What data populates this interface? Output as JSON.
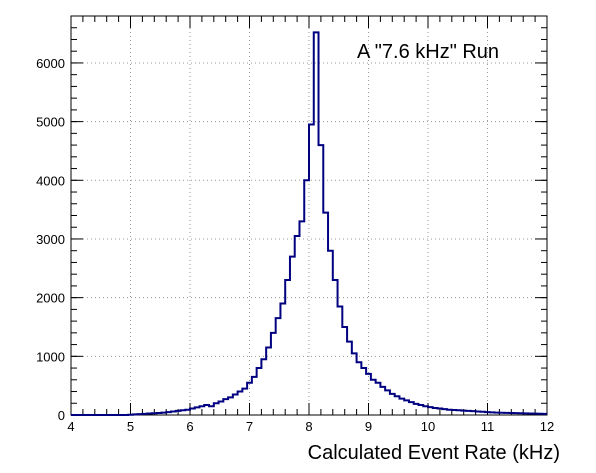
{
  "chart_data": {
    "type": "histogram",
    "title": "",
    "annotation": "A \"7.6 kHz\" Run",
    "xlabel": "Calculated Event Rate (kHz)",
    "ylabel": "",
    "xlim": [
      4,
      12
    ],
    "ylim": [
      0,
      6800
    ],
    "x_ticks": [
      4,
      5,
      6,
      7,
      8,
      9,
      10,
      11,
      12
    ],
    "x_tick_labels": [
      "4",
      "5",
      "6",
      "7",
      "8",
      "9",
      "10",
      "11",
      "12"
    ],
    "y_ticks": [
      0,
      1000,
      2000,
      3000,
      4000,
      5000,
      6000
    ],
    "y_tick_labels": [
      "0",
      "1000",
      "2000",
      "3000",
      "4000",
      "5000",
      "6000"
    ],
    "grid": true,
    "line_color": "#000080",
    "bin_width": 0.08,
    "bin_edges_start": 4.0,
    "values": [
      0,
      0,
      0,
      0,
      0,
      0,
      0,
      0,
      0,
      0,
      0,
      0,
      5,
      10,
      15,
      20,
      25,
      30,
      35,
      40,
      50,
      60,
      70,
      80,
      90,
      110,
      130,
      150,
      170,
      150,
      200,
      230,
      270,
      300,
      350,
      400,
      450,
      550,
      650,
      800,
      950,
      1150,
      1400,
      1650,
      1900,
      2300,
      2700,
      3050,
      3300,
      4000,
      4950,
      6520,
      4600,
      3450,
      2800,
      2300,
      1850,
      1500,
      1250,
      1050,
      900,
      800,
      700,
      600,
      550,
      480,
      420,
      360,
      320,
      280,
      250,
      220,
      190,
      170,
      150,
      135,
      120,
      110,
      100,
      90,
      85,
      80,
      75,
      70,
      65,
      60,
      55,
      50,
      45,
      40,
      38,
      36,
      34,
      32,
      30,
      28,
      26,
      24,
      22,
      20
    ]
  }
}
